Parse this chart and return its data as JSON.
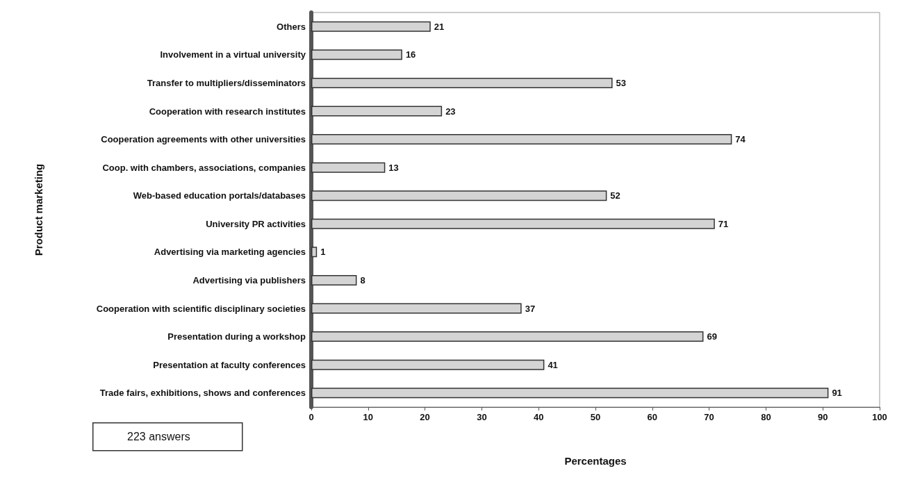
{
  "chart_data": {
    "type": "bar",
    "orientation": "horizontal",
    "xlabel": "Percentages",
    "ylabel": "Product marketing",
    "categories": [
      "Others",
      "Involvement in a virtual university",
      "Transfer to multipliers/disseminators",
      "Cooperation with research institutes",
      "Cooperation agreements with other universities",
      "Coop. with chambers, associations, companies",
      "Web-based education portals/databases",
      "University PR activities",
      "Advertising via marketing agencies",
      "Advertising via publishers",
      "Cooperation with scientific disciplinary societies",
      "Presentation during a workshop",
      "Presentation at faculty conferences",
      "Trade fairs, exhibitions, shows and conferences"
    ],
    "values": [
      21,
      16,
      53,
      23,
      74,
      13,
      52,
      71,
      1,
      8,
      37,
      69,
      41,
      91
    ],
    "color": "#d4d4d4",
    "data_labels": true,
    "xlim": [
      0,
      100
    ],
    "xticks": [
      0,
      10,
      20,
      30,
      40,
      50,
      60,
      70,
      80,
      90,
      100
    ],
    "grid": false,
    "annotations": [
      "223 answers"
    ]
  }
}
